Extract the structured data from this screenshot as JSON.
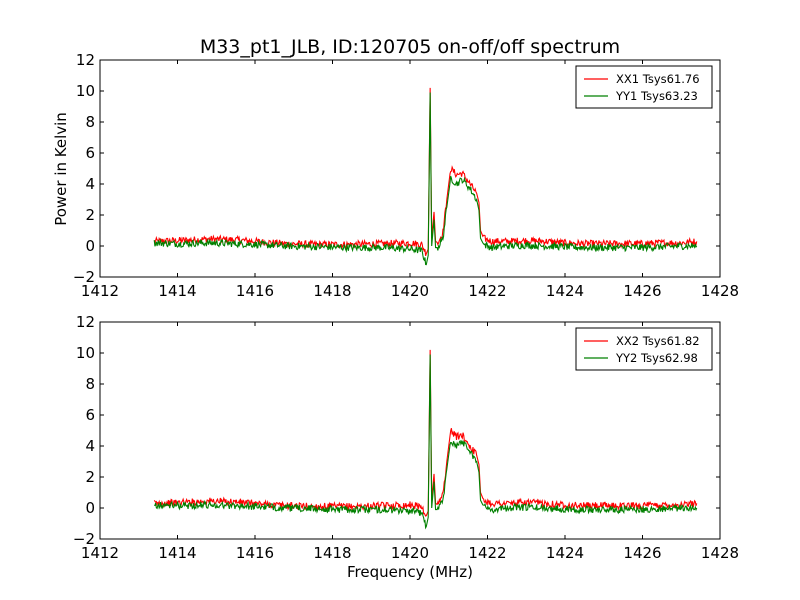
{
  "figure_title": "M33_pt1_JLB, ID:120705 on-off/off spectrum",
  "chart_data": [
    {
      "type": "line",
      "title": "M33_pt1_JLB, ID:120705 on-off/off spectrum",
      "xlabel": "",
      "ylabel": "Power in Kelvin",
      "xlim": [
        1412,
        1428
      ],
      "ylim": [
        -2,
        12
      ],
      "xticks": [
        1412,
        1414,
        1416,
        1418,
        1420,
        1422,
        1424,
        1426,
        1428
      ],
      "yticks": [
        -2,
        0,
        2,
        4,
        6,
        8,
        10,
        12
      ],
      "legend_position": "top-right",
      "series": [
        {
          "name": "XX1 Tsys61.76",
          "color": "#ff0000",
          "x": [
            1413.4,
            1414.0,
            1414.8,
            1415.5,
            1416.0,
            1416.8,
            1417.6,
            1418.5,
            1419.3,
            1420.0,
            1420.3,
            1420.42,
            1420.47,
            1420.52,
            1420.56,
            1420.62,
            1420.66,
            1420.72,
            1420.85,
            1420.95,
            1421.05,
            1421.2,
            1421.35,
            1421.55,
            1421.72,
            1421.78,
            1421.82,
            1421.9,
            1422.1,
            1422.5,
            1423.0,
            1423.5,
            1424.0,
            1424.5,
            1425.0,
            1425.5,
            1426.0,
            1426.5,
            1427.0,
            1427.4
          ],
          "y": [
            0.3,
            0.35,
            0.45,
            0.4,
            0.3,
            0.15,
            0.1,
            0.1,
            0.15,
            0.2,
            0.1,
            -0.5,
            -0.2,
            10.2,
            0.5,
            2.2,
            0.3,
            0.2,
            0.9,
            3.0,
            5.0,
            4.6,
            4.7,
            4.0,
            3.4,
            2.8,
            1.0,
            0.5,
            0.3,
            0.3,
            0.35,
            0.3,
            0.2,
            0.15,
            0.15,
            0.15,
            0.15,
            0.2,
            0.2,
            0.3
          ]
        },
        {
          "name": "YY1 Tsys63.23",
          "color": "#008000",
          "x": [
            1413.4,
            1414.0,
            1414.8,
            1415.5,
            1416.0,
            1416.8,
            1417.6,
            1418.5,
            1419.3,
            1420.0,
            1420.3,
            1420.42,
            1420.47,
            1420.52,
            1420.56,
            1420.62,
            1420.66,
            1420.72,
            1420.85,
            1420.95,
            1421.05,
            1421.2,
            1421.35,
            1421.55,
            1421.72,
            1421.78,
            1421.82,
            1421.9,
            1422.1,
            1422.5,
            1423.0,
            1423.5,
            1424.0,
            1424.5,
            1425.0,
            1425.5,
            1426.0,
            1426.5,
            1427.0,
            1427.4
          ],
          "y": [
            0.2,
            0.15,
            0.2,
            0.15,
            0.1,
            0.0,
            -0.05,
            -0.1,
            -0.1,
            -0.2,
            -0.3,
            -1.2,
            -0.6,
            9.9,
            0.0,
            1.7,
            -0.1,
            -0.1,
            0.5,
            2.5,
            4.4,
            4.0,
            4.3,
            3.7,
            3.0,
            2.3,
            0.5,
            0.1,
            -0.1,
            0.0,
            0.05,
            0.0,
            -0.05,
            -0.1,
            -0.1,
            -0.1,
            -0.1,
            -0.05,
            0.0,
            0.0
          ]
        }
      ]
    },
    {
      "type": "line",
      "title": "",
      "xlabel": "Frequency (MHz)",
      "ylabel": "",
      "xlim": [
        1412,
        1428
      ],
      "ylim": [
        -2,
        12
      ],
      "xticks": [
        1412,
        1414,
        1416,
        1418,
        1420,
        1422,
        1424,
        1426,
        1428
      ],
      "yticks": [
        -2,
        0,
        2,
        4,
        6,
        8,
        10,
        12
      ],
      "legend_position": "top-right",
      "series": [
        {
          "name": "XX2 Tsys61.82",
          "color": "#ff0000",
          "x": [
            1413.4,
            1414.0,
            1414.8,
            1415.5,
            1416.0,
            1416.8,
            1417.6,
            1418.5,
            1419.3,
            1420.0,
            1420.3,
            1420.42,
            1420.47,
            1420.52,
            1420.56,
            1420.62,
            1420.66,
            1420.72,
            1420.85,
            1420.95,
            1421.05,
            1421.2,
            1421.35,
            1421.55,
            1421.72,
            1421.78,
            1421.82,
            1421.9,
            1422.1,
            1422.5,
            1423.0,
            1423.5,
            1424.0,
            1424.5,
            1425.0,
            1425.5,
            1426.0,
            1426.5,
            1427.0,
            1427.4
          ],
          "y": [
            0.3,
            0.35,
            0.45,
            0.4,
            0.3,
            0.15,
            0.1,
            0.1,
            0.15,
            0.2,
            0.1,
            -0.5,
            -0.2,
            10.2,
            0.5,
            2.2,
            0.3,
            0.2,
            0.9,
            3.0,
            5.0,
            4.6,
            4.7,
            4.0,
            3.4,
            2.8,
            1.0,
            0.5,
            0.3,
            0.3,
            0.35,
            0.3,
            0.2,
            0.15,
            0.15,
            0.15,
            0.15,
            0.2,
            0.2,
            0.3
          ]
        },
        {
          "name": "YY2 Tsys62.98",
          "color": "#008000",
          "x": [
            1413.4,
            1414.0,
            1414.8,
            1415.5,
            1416.0,
            1416.8,
            1417.6,
            1418.5,
            1419.3,
            1420.0,
            1420.3,
            1420.42,
            1420.47,
            1420.52,
            1420.56,
            1420.62,
            1420.66,
            1420.72,
            1420.85,
            1420.95,
            1421.05,
            1421.2,
            1421.35,
            1421.55,
            1421.72,
            1421.78,
            1421.82,
            1421.9,
            1422.1,
            1422.5,
            1423.0,
            1423.5,
            1424.0,
            1424.5,
            1425.0,
            1425.5,
            1426.0,
            1426.5,
            1427.0,
            1427.4
          ],
          "y": [
            0.2,
            0.15,
            0.2,
            0.15,
            0.1,
            0.0,
            -0.05,
            -0.1,
            -0.1,
            -0.2,
            -0.3,
            -1.2,
            -0.6,
            9.9,
            0.0,
            1.7,
            -0.1,
            -0.1,
            0.5,
            2.5,
            4.4,
            4.0,
            4.3,
            3.7,
            3.0,
            2.3,
            0.5,
            0.1,
            -0.1,
            0.0,
            0.05,
            0.0,
            -0.05,
            -0.1,
            -0.1,
            -0.1,
            -0.1,
            -0.05,
            0.0,
            0.0
          ]
        }
      ]
    }
  ]
}
